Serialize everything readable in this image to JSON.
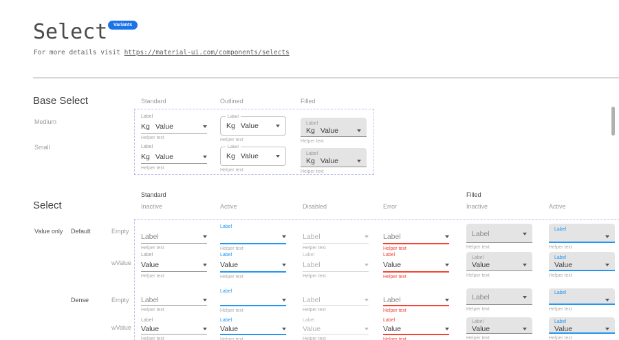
{
  "colors": {
    "accent": "#2196f3",
    "error": "#f44336",
    "badge": "#1a73e8",
    "dashed": "#b9c0ec",
    "filled_bg": "#e4e4e4"
  },
  "header": {
    "title": "Select",
    "badge": "Variants",
    "subtitle_text": "For more details visit ",
    "subtitle_link": "https://material-ui.com/components/selects"
  },
  "base_select": {
    "heading": "Base Select",
    "columns": [
      "Standard",
      "Outlined",
      "Filled"
    ],
    "variants": [
      "standard",
      "outlined",
      "filled"
    ],
    "rows": [
      {
        "label": "Medium"
      },
      {
        "label": "Small"
      }
    ],
    "cell": {
      "label": "Label",
      "adornment": "Kg",
      "value": "Value",
      "helper": "Helper text"
    }
  },
  "select": {
    "heading": "Select",
    "group_headers": [
      "Standard",
      "Filled"
    ],
    "column_headers": [
      "Inactive",
      "Active",
      "Disabled",
      "Error",
      "Inactive",
      "Active"
    ],
    "helper": "Helper text",
    "rows": [
      {
        "side_labels": [
          "Value only",
          "Default",
          "Empty"
        ],
        "dense": false,
        "cells": [
          {
            "variant": "standard",
            "state": "inactive",
            "caption": "",
            "value": "Label",
            "placeholder": true
          },
          {
            "variant": "standard",
            "state": "active",
            "caption": "Label",
            "value": "",
            "placeholder": false
          },
          {
            "variant": "standard",
            "state": "disabled",
            "caption": "",
            "value": "Label",
            "placeholder": true
          },
          {
            "variant": "standard",
            "state": "error",
            "caption": "",
            "value": "Label",
            "placeholder": true
          },
          {
            "variant": "filled",
            "state": "inactive",
            "caption": "",
            "value": "Label",
            "placeholder": true
          },
          {
            "variant": "filled",
            "state": "active",
            "caption": "Label",
            "value": "",
            "placeholder": false
          }
        ]
      },
      {
        "side_labels": [
          "",
          "",
          "wValue"
        ],
        "dense": false,
        "cells": [
          {
            "variant": "standard",
            "state": "inactive",
            "caption": "Label",
            "value": "Value",
            "placeholder": false
          },
          {
            "variant": "standard",
            "state": "active",
            "caption": "Label",
            "value": "Value",
            "placeholder": false
          },
          {
            "variant": "standard",
            "state": "disabled",
            "caption": "Label",
            "value": "Label",
            "placeholder": false
          },
          {
            "variant": "standard",
            "state": "error",
            "caption": "Label",
            "value": "Value",
            "placeholder": false
          },
          {
            "variant": "filled",
            "state": "inactive",
            "caption": "Label",
            "value": "Value",
            "placeholder": false
          },
          {
            "variant": "filled",
            "state": "active",
            "caption": "Label",
            "value": "Value",
            "placeholder": false
          }
        ]
      },
      {
        "side_labels": [
          "",
          "Dense",
          "Empty"
        ],
        "dense": true,
        "cells": [
          {
            "variant": "standard",
            "state": "inactive",
            "caption": "",
            "value": "Label",
            "placeholder": true
          },
          {
            "variant": "standard",
            "state": "active",
            "caption": "Label",
            "value": "",
            "placeholder": false
          },
          {
            "variant": "standard",
            "state": "disabled",
            "caption": "",
            "value": "Label",
            "placeholder": true
          },
          {
            "variant": "standard",
            "state": "error",
            "caption": "",
            "value": "Label",
            "placeholder": true
          },
          {
            "variant": "filled",
            "state": "inactive",
            "caption": "",
            "value": "Label",
            "placeholder": true
          },
          {
            "variant": "filled",
            "state": "active",
            "caption": "Label",
            "value": "",
            "placeholder": false
          }
        ]
      },
      {
        "side_labels": [
          "",
          "",
          "wValue"
        ],
        "dense": true,
        "cells": [
          {
            "variant": "standard",
            "state": "inactive",
            "caption": "Label",
            "value": "Value",
            "placeholder": false
          },
          {
            "variant": "standard",
            "state": "active",
            "caption": "Label",
            "value": "Value",
            "placeholder": false
          },
          {
            "variant": "standard",
            "state": "disabled",
            "caption": "Label",
            "value": "Value",
            "placeholder": false
          },
          {
            "variant": "standard",
            "state": "error",
            "caption": "Label",
            "value": "Value",
            "placeholder": false
          },
          {
            "variant": "filled",
            "state": "inactive",
            "caption": "Label",
            "value": "Value",
            "placeholder": false
          },
          {
            "variant": "filled",
            "state": "active",
            "caption": "Label",
            "value": "Value",
            "placeholder": false
          }
        ]
      }
    ]
  }
}
